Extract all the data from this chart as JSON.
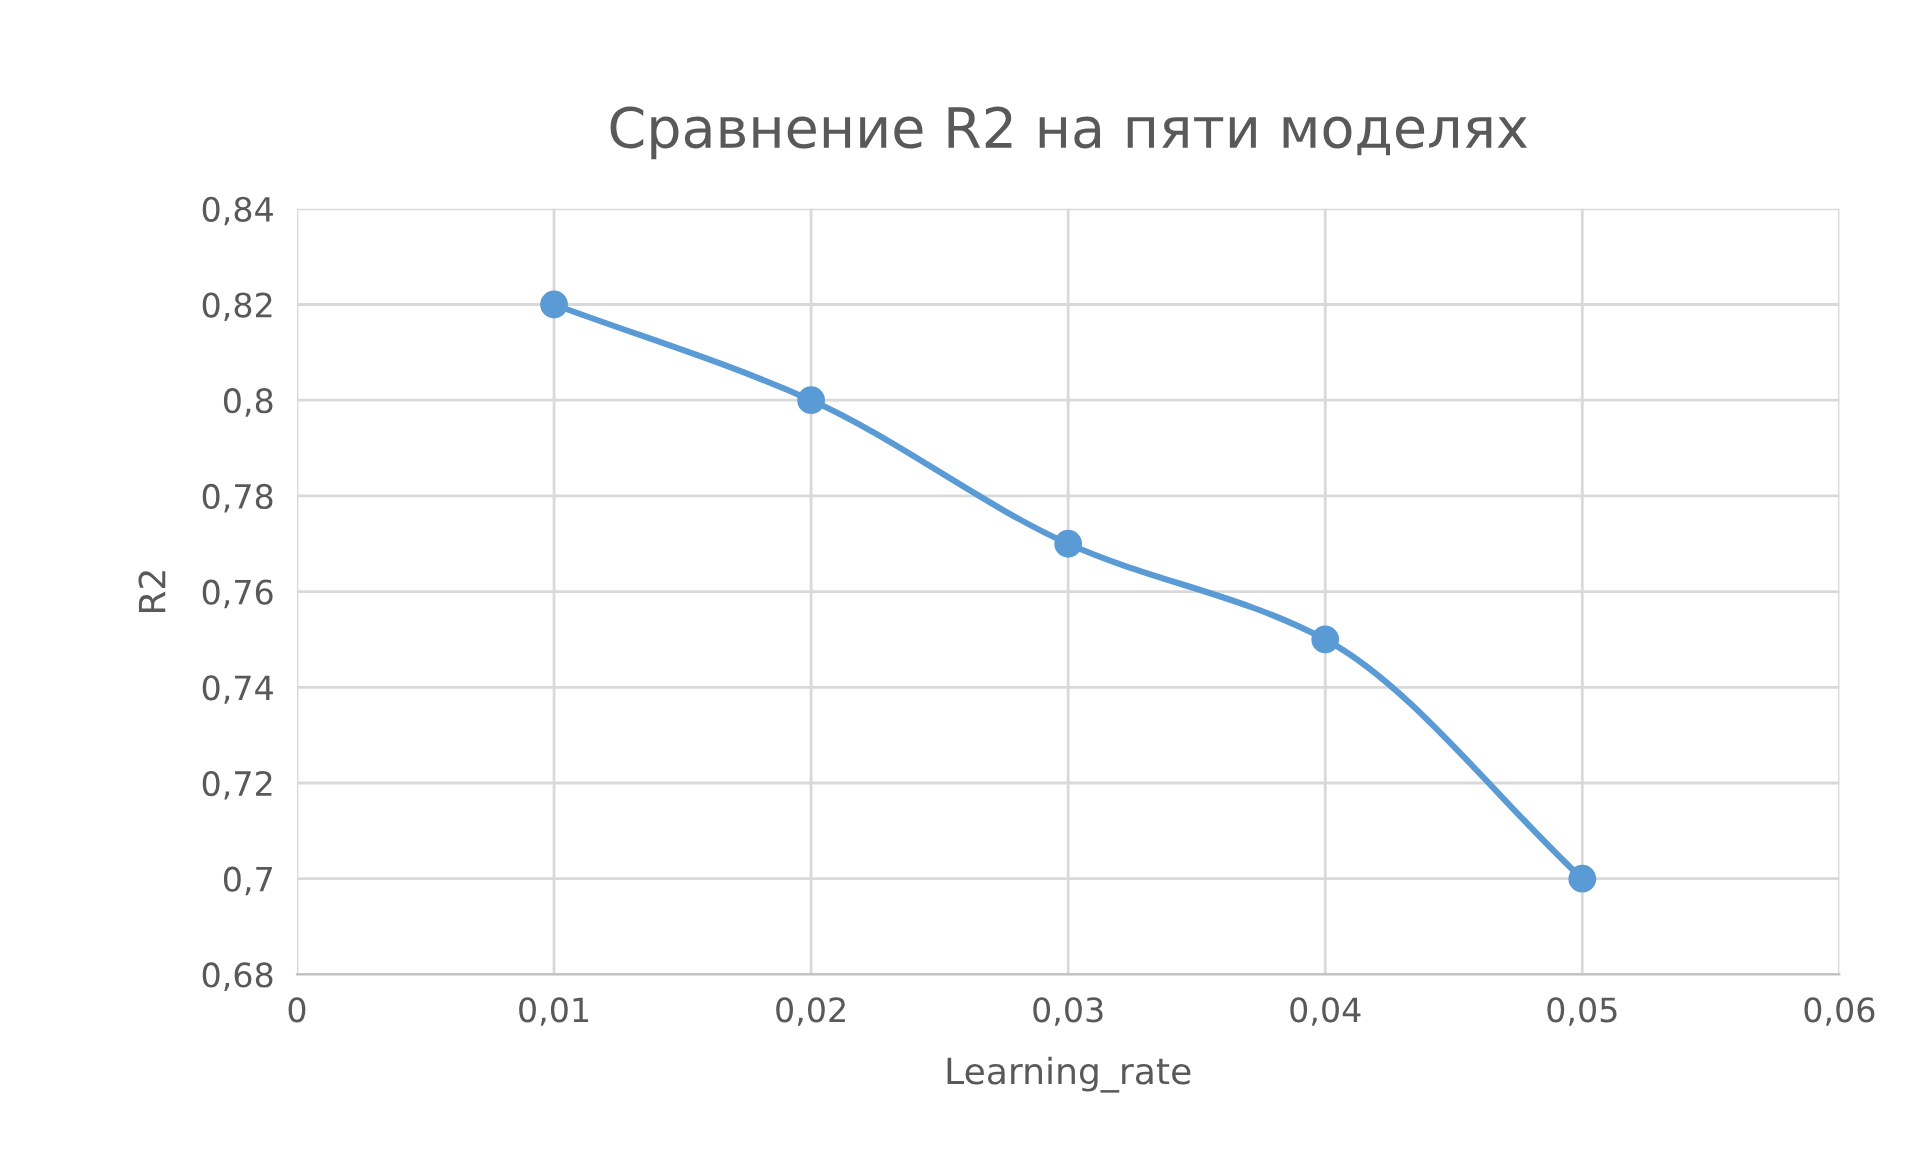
{
  "chart_data": {
    "type": "line",
    "title": "Сравнение R2 на пяти моделях",
    "xlabel": "Learning_rate",
    "ylabel": "R2",
    "x": [
      0.01,
      0.02,
      0.03,
      0.04,
      0.05
    ],
    "series": [
      {
        "color": "#5b9bd5",
        "values": [
          0.82,
          0.8,
          0.77,
          0.75,
          0.7
        ]
      }
    ],
    "xlim": [
      0,
      0.06
    ],
    "xticks": [
      0,
      {
        "value": 0.01,
        "label": "0,01"
      },
      {
        "value": 0.02,
        "label": "0,02"
      },
      {
        "value": 0.03,
        "label": "0,03"
      },
      {
        "value": 0.04,
        "label": "0,04"
      },
      {
        "value": 0.05,
        "label": "0,05"
      },
      {
        "value": 0.06,
        "label": "0,06"
      }
    ],
    "ylim": [
      0.68,
      0.84
    ],
    "yticks": [
      {
        "value": 0.68,
        "label": "0,68"
      },
      {
        "value": 0.7,
        "label": "0,7"
      },
      {
        "value": 0.72,
        "label": "0,72"
      },
      {
        "value": 0.74,
        "label": "0,74"
      },
      {
        "value": 0.76,
        "label": "0,76"
      },
      {
        "value": 0.78,
        "label": "0,78"
      },
      {
        "value": 0.8,
        "label": "0,8"
      },
      {
        "value": 0.82,
        "label": "0,82"
      },
      {
        "value": 0.84,
        "label": "0,84"
      }
    ],
    "grid": true,
    "marker": "circle",
    "line_style": "solid"
  }
}
